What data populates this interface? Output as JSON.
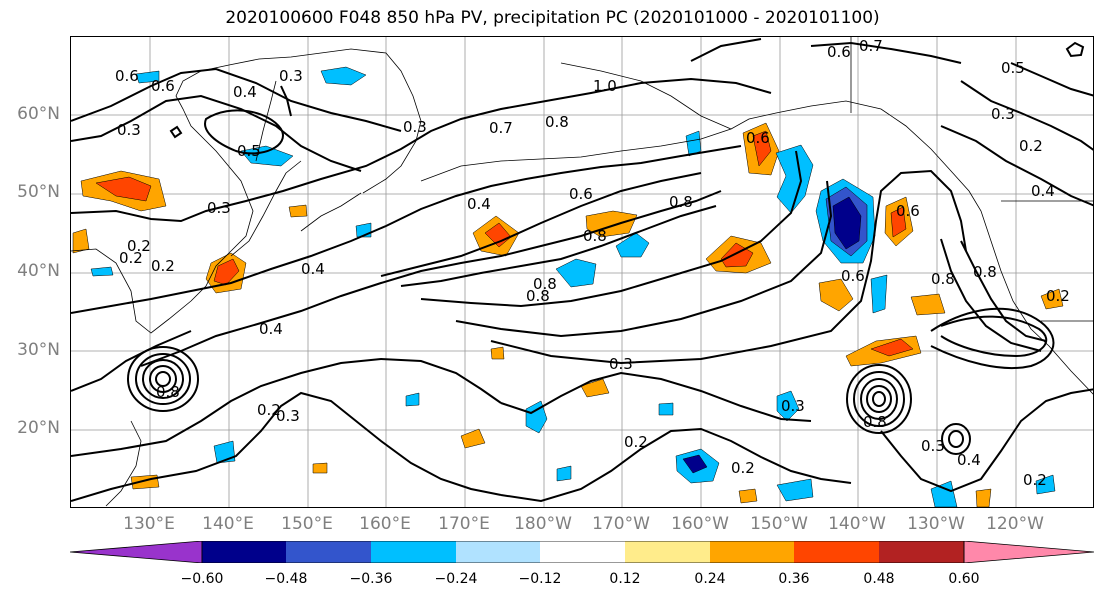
{
  "title": "2020100600 F048 850 hPa PV, precipitation PC (2020101000 - 2020101100)",
  "lat_labels": [
    "60°N",
    "50°N",
    "40°N",
    "30°N",
    "20°N"
  ],
  "lon_labels": [
    "130°E",
    "140°E",
    "150°E",
    "160°E",
    "170°E",
    "180°W",
    "170°W",
    "160°W",
    "150°W",
    "140°W",
    "130°W",
    "120°W"
  ],
  "contour_labels": [
    "0.6",
    "0.4",
    "0.3",
    "0.5",
    "0.3",
    "0.2",
    "0.2",
    "0.4",
    "0.4",
    "0.8",
    "0.3",
    "0.2",
    "0.3",
    "0.7",
    "0.8",
    "0.6",
    "0.8",
    "0.8",
    "0.4",
    "0.6",
    "0.8",
    "0.8",
    "0.3",
    "0.2",
    "0.2",
    "0.3",
    "0.6",
    "0.7",
    "0.5",
    "0.3",
    "0.2",
    "0.4",
    "0.6",
    "0.6",
    "0.8",
    "0.8",
    "0.2",
    "0.3",
    "0.8",
    "0.3",
    "0.4",
    "0.2",
    "1.0",
    "0.2",
    "0.6"
  ],
  "colorbar": {
    "colors": [
      "#9933cc",
      "#00008b",
      "#3355cc",
      "#00bfff",
      "#b0e2ff",
      "#ffffff",
      "#ffec8b",
      "#ffa500",
      "#ff4500",
      "#b22222",
      "#ff88aa"
    ],
    "ticks": [
      "−0.60",
      "−0.48",
      "−0.36",
      "−0.24",
      "−0.12",
      "0.12",
      "0.24",
      "0.36",
      "0.48",
      "0.60"
    ]
  },
  "precip_colors": {
    "neg_strong": "#00008b",
    "neg_mid": "#3355cc",
    "neg_light": "#00bfff",
    "pos_light": "#ffa500",
    "pos_mid": "#ff4500",
    "pos_strong": "#b22222"
  }
}
